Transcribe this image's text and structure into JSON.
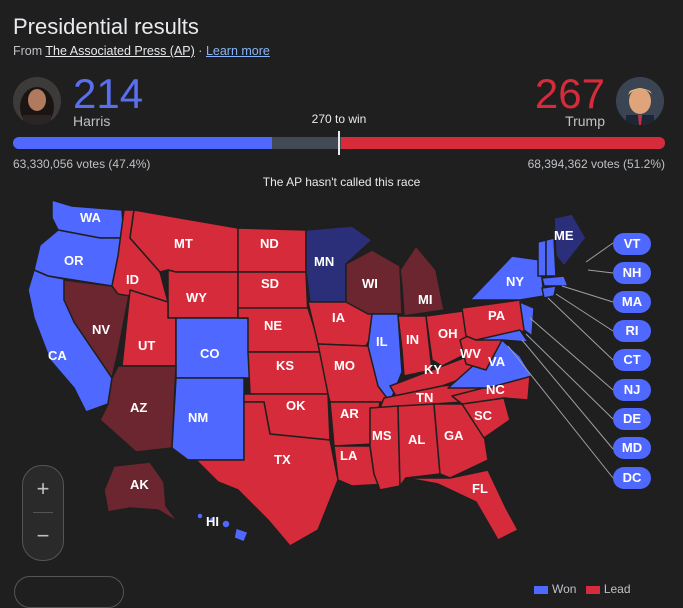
{
  "header": {
    "title": "Presidential results",
    "source_prefix": "From",
    "source_link": "The Associated Press (AP)",
    "separator": "·",
    "learn_more": "Learn more"
  },
  "candidates": {
    "dem": {
      "name": "Harris",
      "electoral_votes": "214",
      "votes_text": "63,330,056 votes (47.4%)",
      "color": "#4f68ff"
    },
    "rep": {
      "name": "Trump",
      "electoral_votes": "267",
      "votes_text": "68,394,362 votes (51.2%)",
      "color": "#d62b3a"
    }
  },
  "threshold_label": "270 to win",
  "bar": {
    "total": 538,
    "dem": 214,
    "rep": 267,
    "threshold": 270
  },
  "notice": "The AP hasn't called this race",
  "map": {
    "colors": {
      "dem": "#4f68ff",
      "rep": "#d62b3a",
      "lean_dem": "#2b2f7a",
      "lean_rep": "#6b2630",
      "land_border": "#1f1f1f"
    },
    "labels": {
      "WA": "WA",
      "OR": "OR",
      "CA": "CA",
      "NV": "NV",
      "ID": "ID",
      "MT": "MT",
      "WY": "WY",
      "UT": "UT",
      "AZ": "AZ",
      "CO": "CO",
      "NM": "NM",
      "ND": "ND",
      "SD": "SD",
      "NE": "NE",
      "KS": "KS",
      "OK": "OK",
      "TX": "TX",
      "MN": "MN",
      "IA": "IA",
      "MO": "MO",
      "AR": "AR",
      "LA": "LA",
      "WI": "WI",
      "IL": "IL",
      "MI": "MI",
      "IN": "IN",
      "OH": "OH",
      "KY": "KY",
      "TN": "TN",
      "MS": "MS",
      "AL": "AL",
      "GA": "GA",
      "FL": "FL",
      "SC": "SC",
      "NC": "NC",
      "WV": "WV",
      "VA": "VA",
      "PA": "PA",
      "NY": "NY",
      "ME": "ME",
      "AK": "AK",
      "HI": "HI"
    }
  },
  "small_states": [
    "VT",
    "NH",
    "MA",
    "RI",
    "CT",
    "NJ",
    "DE",
    "MD",
    "DC"
  ],
  "zoom": {
    "in_symbol": "+",
    "out_symbol": "−"
  },
  "legend": {
    "dem_label": "Won",
    "rep_label": "Lead"
  }
}
